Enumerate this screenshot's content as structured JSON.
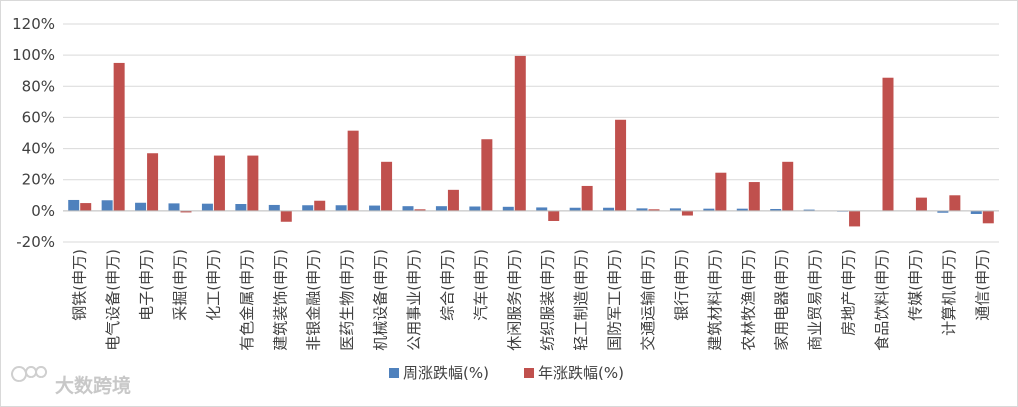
{
  "chart_data": {
    "type": "bar",
    "ylim": [
      -20,
      120
    ],
    "y_ticks": [
      "-20%",
      "0%",
      "20%",
      "40%",
      "60%",
      "80%",
      "100%",
      "120%"
    ],
    "y_tick_values": [
      -20,
      0,
      20,
      40,
      60,
      80,
      100,
      120
    ],
    "grid": true,
    "legend_position": "bottom",
    "categories": [
      "钢铁(申万)",
      "电气设备(申万)",
      "电子(申万)",
      "采掘(申万)",
      "化工(申万)",
      "有色金属(申万)",
      "建筑装饰(申万)",
      "非银金融(申万)",
      "医药生物(申万)",
      "机械设备(申万)",
      "公用事业(申万)",
      "综合(申万)",
      "汽车(申万)",
      "休闲服务(申万)",
      "纺织服装(申万)",
      "轻工制造(申万)",
      "国防军工(申万)",
      "交通运输(申万)",
      "银行(申万)",
      "建筑材料(申万)",
      "农林牧渔(申万)",
      "家用电器(申万)",
      "商业贸易(申万)",
      "房地产(申万)",
      "食品饮料(申万)",
      "传媒(申万)",
      "计算机(申万)",
      "通信(申万)"
    ],
    "series": [
      {
        "name": "周涨跌幅(%)",
        "color": "#4f81bd",
        "values": [
          7.0,
          6.8,
          5.2,
          4.8,
          4.6,
          4.4,
          3.8,
          3.6,
          3.6,
          3.4,
          3.0,
          3.0,
          2.8,
          2.6,
          2.2,
          2.0,
          2.0,
          1.6,
          1.6,
          1.4,
          1.4,
          1.2,
          0.8,
          -0.5,
          0.2,
          0.1,
          -1.2,
          -2.0
        ]
      },
      {
        "name": "年涨跌幅(%)",
        "color": "#c0504d",
        "values": [
          5.0,
          95.0,
          37.0,
          -1.0,
          35.5,
          35.5,
          -7.0,
          6.5,
          51.5,
          31.5,
          1.0,
          13.5,
          46.0,
          99.5,
          -6.5,
          16.0,
          58.5,
          1.0,
          -3.0,
          24.5,
          18.5,
          31.5,
          0.0,
          -10.0,
          85.5,
          8.5,
          10.0,
          -8.0
        ]
      }
    ]
  },
  "watermark": {
    "text": "大数跨境"
  }
}
